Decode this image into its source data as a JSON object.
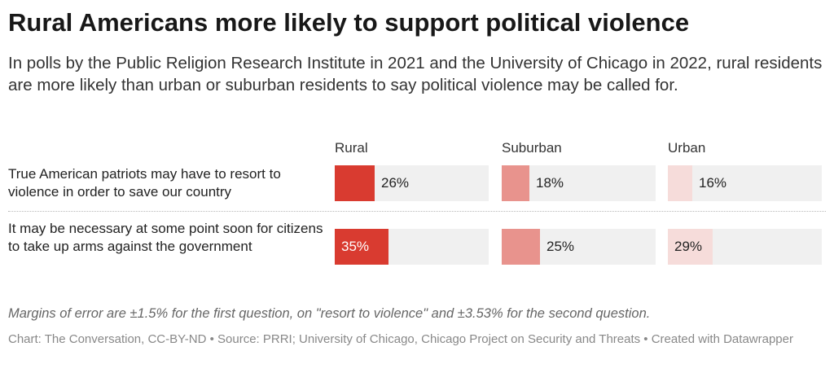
{
  "title": "Rural Americans more likely to support political violence",
  "subtitle": "In polls by the Public Religion Research Institute in 2021 and the University of Chicago in 2022, rural residents are more likely than urban or suburban residents to say political violence may be called for.",
  "notes": "Margins of error are ±1.5% for the first question, on \"resort to violence\" and ±3.53% for the second question.",
  "footer": "Chart: The Conversation, CC-BY-ND • Source: PRRI; University of Chicago, Chicago Project on Security and Threats • Created with Datawrapper",
  "chart_data": {
    "type": "bar",
    "columns": [
      {
        "name": "Rural",
        "color": "#d93b30"
      },
      {
        "name": "Suburban",
        "color": "#e8938d"
      },
      {
        "name": "Urban",
        "color": "#f6dcda"
      }
    ],
    "rows": [
      {
        "label": "True American patriots may have to resort to violence in order to save our country",
        "values": [
          26,
          18,
          16
        ],
        "display": [
          "26%",
          "18%",
          "16%"
        ]
      },
      {
        "label": "It may be necessary at some point soon for citizens to take up arms against the government",
        "values": [
          35,
          25,
          29
        ],
        "display": [
          "35%",
          "25%",
          "29%"
        ]
      }
    ],
    "value_range": [
      0,
      100
    ],
    "track_color": "#f0f0f0",
    "grid": false,
    "legend": "column headers"
  }
}
